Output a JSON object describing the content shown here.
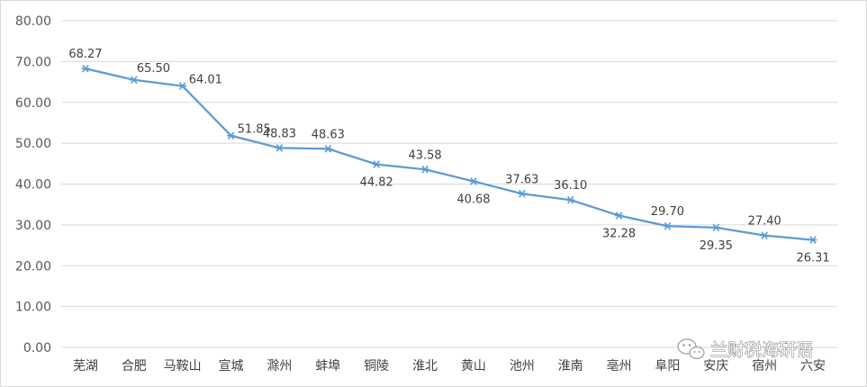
{
  "chart_data": {
    "type": "line",
    "categories": [
      "芜湖",
      "合肥",
      "马鞍山",
      "宣城",
      "滁州",
      "蚌埠",
      "铜陵",
      "淮北",
      "黄山",
      "池州",
      "淮南",
      "亳州",
      "阜阳",
      "安庆",
      "宿州",
      "六安"
    ],
    "series": [
      {
        "values": [
          68.27,
          65.5,
          64.01,
          51.85,
          48.83,
          48.63,
          44.82,
          43.58,
          40.68,
          37.63,
          36.1,
          32.28,
          29.7,
          29.35,
          27.4,
          26.31
        ],
        "data_labels": [
          "68.27",
          "65.50",
          "64.01",
          "51.85",
          "48.83",
          "48.63",
          "44.82",
          "43.58",
          "40.68",
          "37.63",
          "36.10",
          "32.28",
          "29.70",
          "29.35",
          "27.40",
          "26.31"
        ],
        "color": "#5b9bd5",
        "marker": "asterisk"
      }
    ],
    "title": "",
    "xlabel": "",
    "ylabel": "",
    "ylim": [
      0,
      80
    ],
    "yticks": [
      "0.00",
      "10.00",
      "20.00",
      "30.00",
      "40.00",
      "50.00",
      "60.00",
      "70.00",
      "80.00"
    ],
    "grid": "horizontal",
    "gridline_color": "#d9d9d9",
    "legend": "none"
  },
  "watermark": {
    "text": "兰财税海研语",
    "icon": "wechat-icon"
  }
}
